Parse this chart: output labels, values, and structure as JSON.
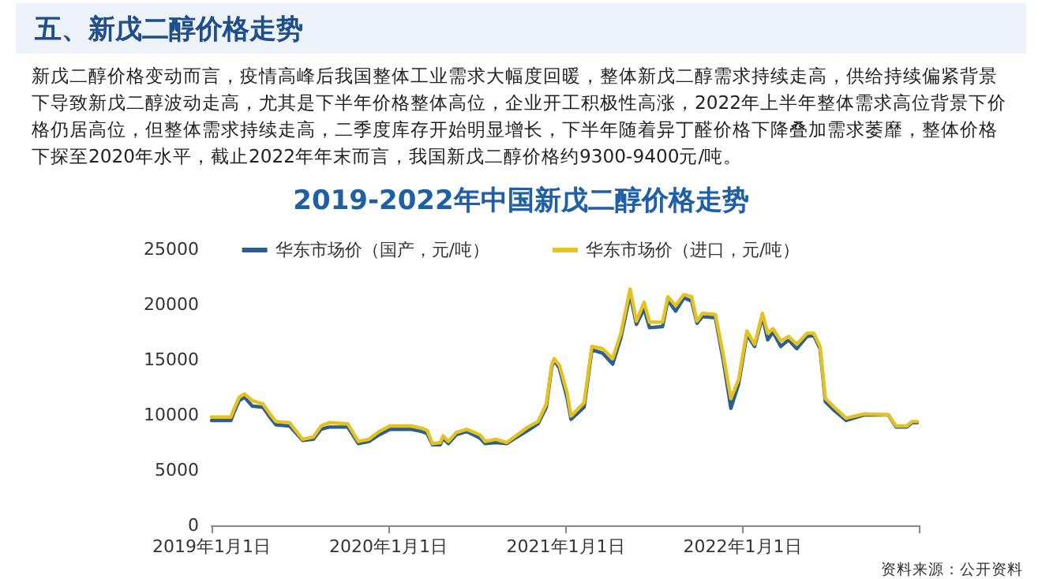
{
  "chart_data": {
    "type": "line",
    "title": "2019-2022年中国新戊二醇价格走势",
    "subtitle": "新戊二醇价格变动而言，疫情高峰后我国整体工业需求大幅度回暖，整体新戊二醇需求持续走高，供给持续偏紧背景下导致新戊二醇波动走高，尤其是下半年价格整体高位，企业开工积极性高涨，2022年上半年整体需求高位背景下价格仍居高位，但整体需求持续走高，二季度库存开始明显增长，下半年随着异丁醛价格下降叠加需求萎靡，整体价格下探至2020年水平，截止2022年年末而言，我国新戊二醇价格约9300-9400元/吨。",
    "annotations": [
      "五、新戊二醇价格走势",
      "资料来源：公开资料"
    ],
    "x": [
      "2019-01-01",
      "2019-02-10",
      "2019-02-16",
      "2019-02-27",
      "2019-03-10",
      "2019-03-26",
      "2019-04-17",
      "2019-05-03",
      "2019-05-14",
      "2019-06-11",
      "2019-07-08",
      "2019-07-30",
      "2019-08-15",
      "2019-09-01",
      "2019-10-09",
      "2019-10-31",
      "2019-11-22",
      "2019-12-13",
      "2020-01-04",
      "2020-02-17",
      "2020-03-10",
      "2020-03-21",
      "2020-04-01",
      "2020-04-17",
      "2020-04-23",
      "2020-05-04",
      "2020-05-20",
      "2020-06-11",
      "2020-07-08",
      "2020-07-19",
      "2020-08-10",
      "2020-09-01",
      "2020-09-23",
      "2020-10-15",
      "2020-11-05",
      "2020-11-22",
      "2020-12-03",
      "2020-12-08",
      "2020-12-19",
      "2021-01-04",
      "2021-01-12",
      "2021-02-08",
      "2021-02-24",
      "2021-03-18",
      "2021-04-08",
      "2021-04-25",
      "2021-05-14",
      "2021-05-27",
      "2021-06-12",
      "2021-06-23",
      "2021-07-20",
      "2021-07-31",
      "2021-08-16",
      "2021-09-02",
      "2021-09-18",
      "2021-09-29",
      "2021-10-10",
      "2021-11-06",
      "2021-11-22",
      "2021-12-08",
      "2021-12-24",
      "2022-01-10",
      "2022-01-26",
      "2022-02-11",
      "2022-02-22",
      "2022-03-05",
      "2022-03-21",
      "2022-04-06",
      "2022-04-23",
      "2022-05-14",
      "2022-05-28",
      "2022-06-10",
      "2022-06-21",
      "2022-07-07",
      "2022-08-03",
      "2022-09-10",
      "2022-10-29",
      "2022-11-14",
      "2022-12-06",
      "2022-12-17",
      "2022-12-28"
    ],
    "series": [
      {
        "name": "华东市场价（国产，元/吨）",
        "color": "#2b5f91",
        "values": [
          9500,
          9500,
          10200,
          11300,
          11600,
          10800,
          10700,
          9700,
          9100,
          9000,
          7700,
          7800,
          8700,
          8900,
          8900,
          7400,
          7600,
          8200,
          8700,
          8700,
          8500,
          8300,
          7300,
          7300,
          7900,
          7400,
          8200,
          8500,
          7900,
          7400,
          7500,
          7400,
          8000,
          8600,
          9200,
          10700,
          14300,
          15000,
          14200,
          11500,
          9600,
          10700,
          15900,
          15600,
          14600,
          17000,
          20900,
          18200,
          19600,
          17900,
          18000,
          20400,
          19400,
          20600,
          20300,
          18300,
          18900,
          18800,
          15000,
          10600,
          12800,
          17300,
          16200,
          18900,
          16800,
          17500,
          16200,
          16800,
          16000,
          17100,
          17200,
          16000,
          11200,
          10500,
          9500,
          10000,
          10000,
          8900,
          8900,
          9300,
          9300
        ]
      },
      {
        "name": "华东市场价（进口，元/吨）",
        "color": "#e6c21f",
        "values": [
          9800,
          9800,
          10500,
          11600,
          11900,
          11300,
          11000,
          10000,
          9400,
          9300,
          7800,
          8000,
          9000,
          9300,
          9200,
          7600,
          7800,
          8500,
          9000,
          9000,
          8800,
          8600,
          7400,
          7500,
          8100,
          7600,
          8400,
          8700,
          8200,
          7600,
          7800,
          7500,
          8200,
          8900,
          9400,
          11000,
          14500,
          15100,
          14500,
          12000,
          9900,
          11100,
          16200,
          16000,
          15100,
          17400,
          21400,
          18500,
          20200,
          18400,
          18400,
          20700,
          19900,
          20900,
          20700,
          18500,
          19200,
          19100,
          15500,
          11500,
          13200,
          17600,
          16400,
          19200,
          17400,
          17800,
          16700,
          17100,
          16400,
          17400,
          17400,
          16200,
          11500,
          10800,
          9700,
          10100,
          10000,
          9000,
          9000,
          9400,
          9400
        ]
      }
    ],
    "xlim": [
      "2019-01-01",
      "2022-12-31"
    ],
    "xticks": [
      {
        "value": "2019-01-01",
        "label": "2019年1月1日"
      },
      {
        "value": "2020-01-01",
        "label": "2020年1月1日"
      },
      {
        "value": "2021-01-01",
        "label": "2021年1月1日"
      },
      {
        "value": "2022-01-01",
        "label": "2022年1月1日"
      },
      {
        "value": "2022-12-31",
        "label": null
      }
    ],
    "ylim": [
      0,
      25000
    ],
    "yticks": [
      0,
      5000,
      10000,
      15000,
      20000,
      25000
    ],
    "grid": false,
    "legend": "top",
    "marker": "none",
    "line_style": "solid"
  }
}
